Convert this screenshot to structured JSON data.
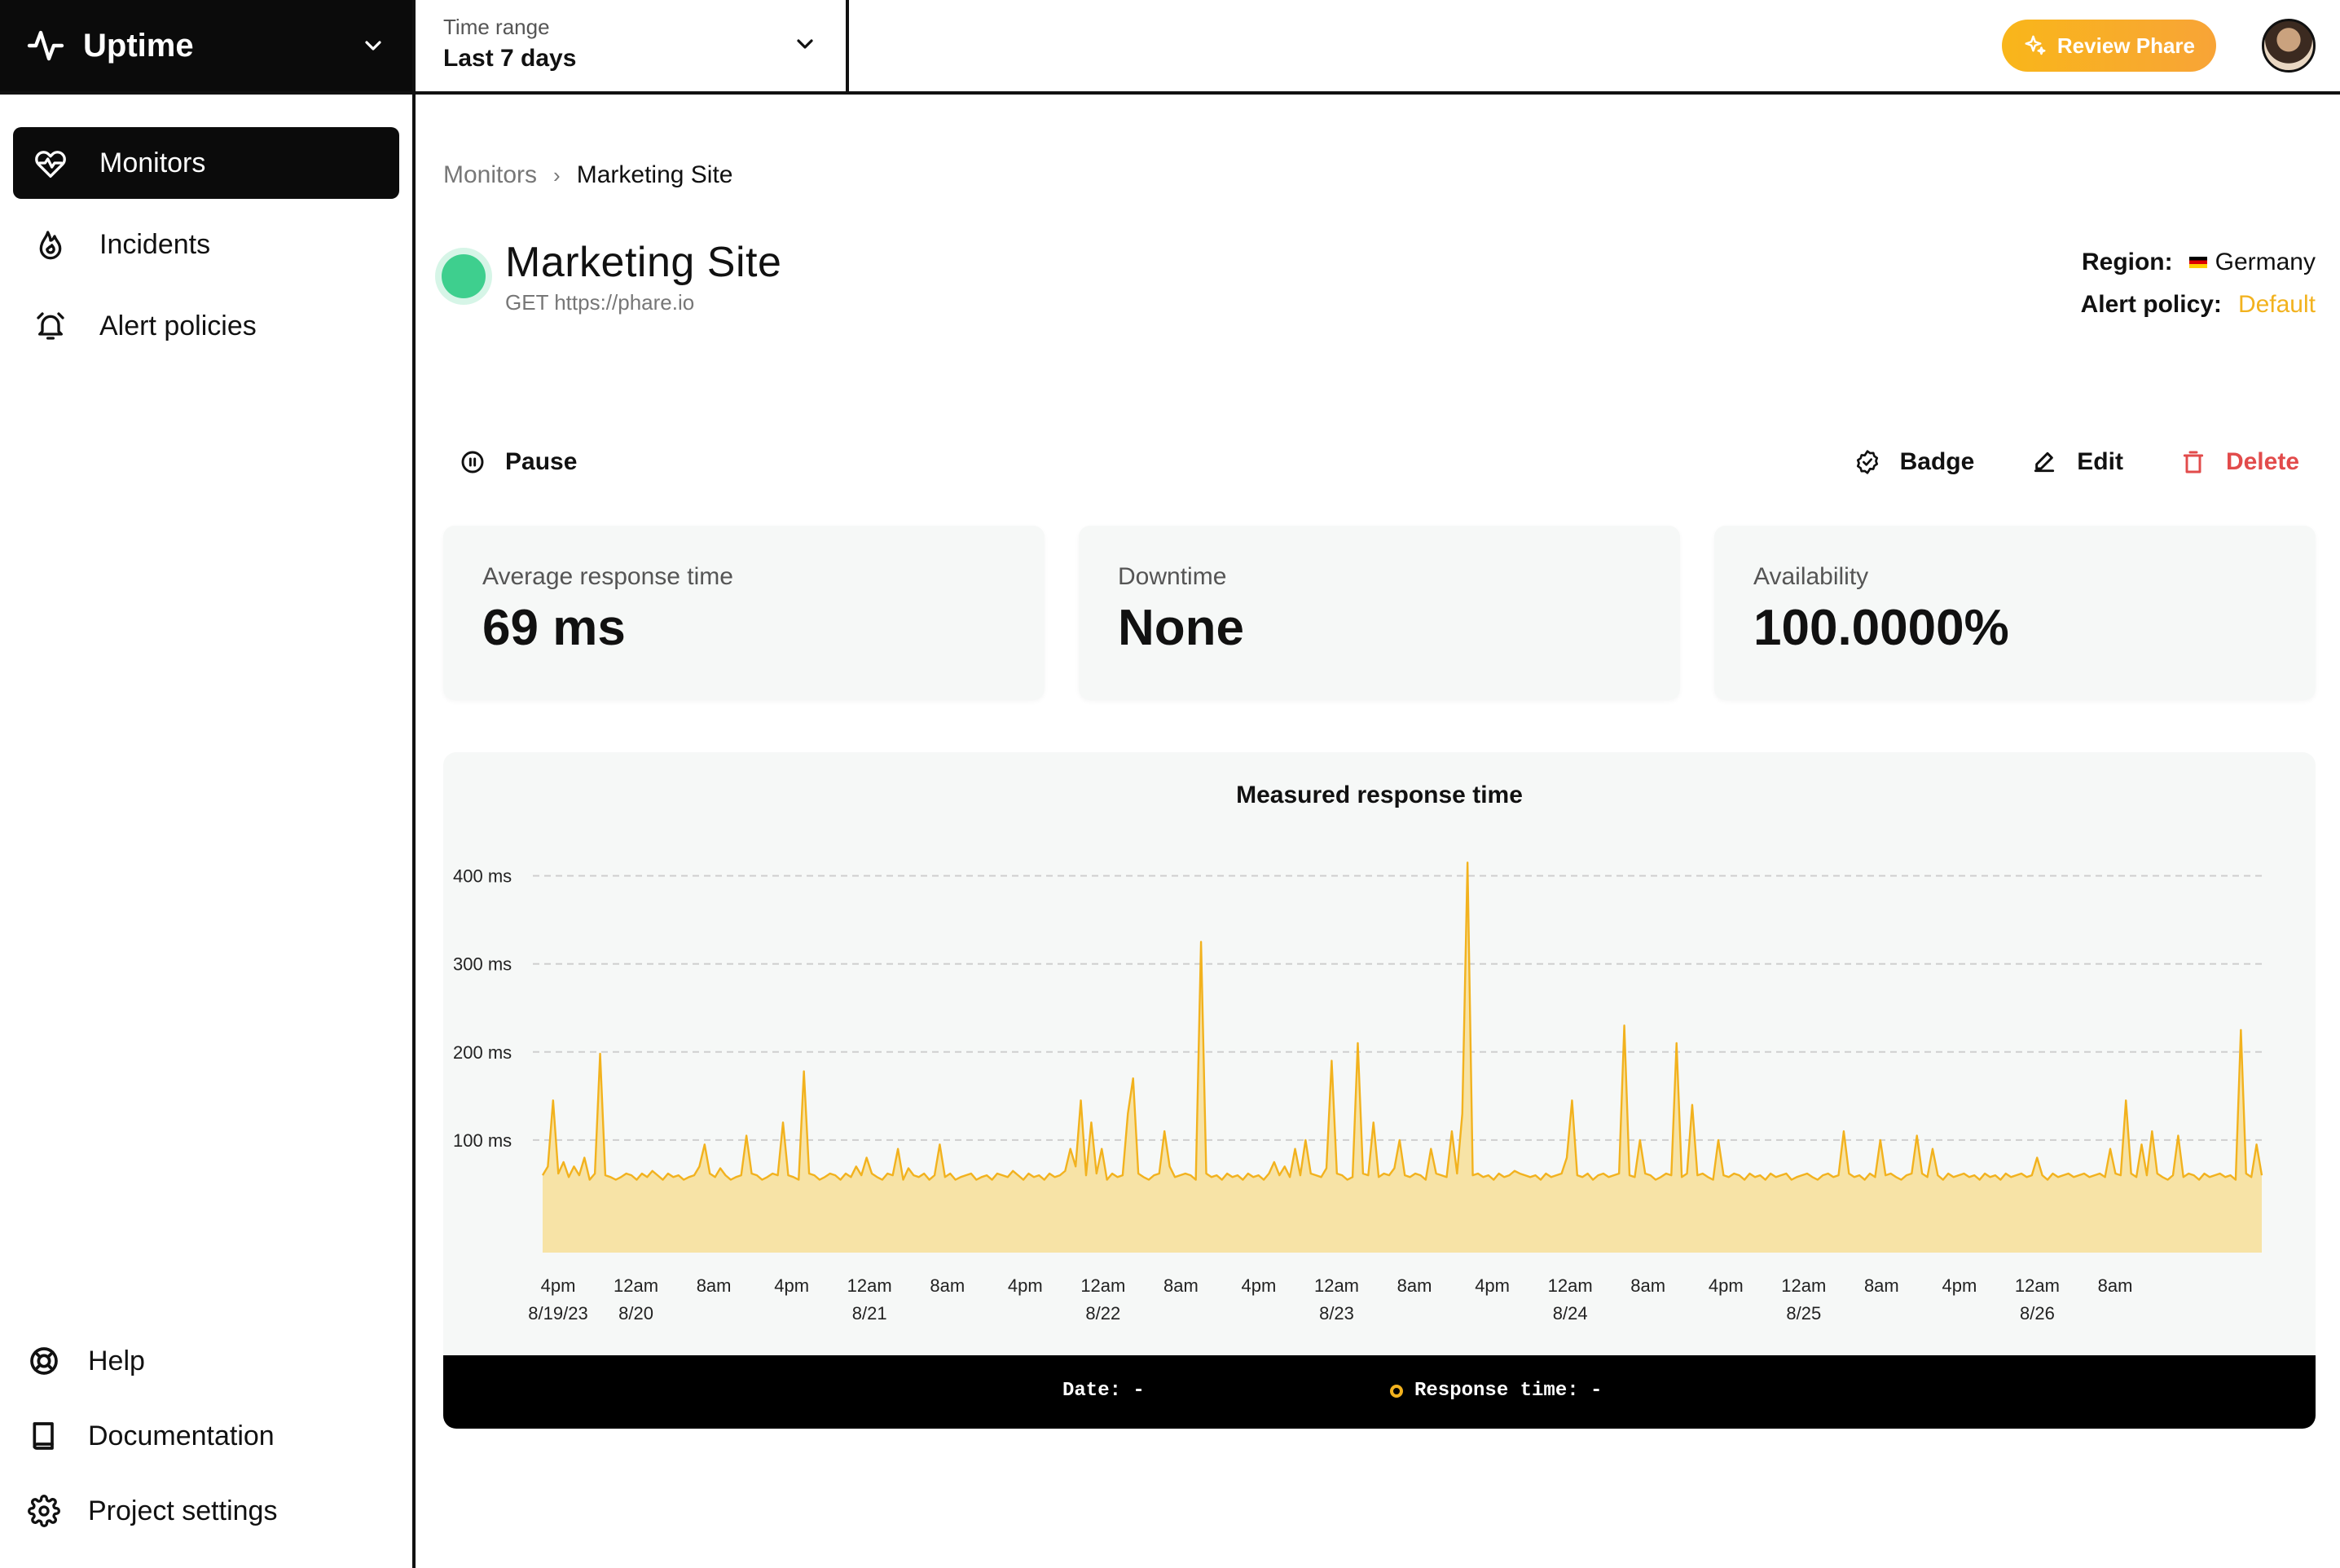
{
  "sidebar": {
    "project_name": "Uptime",
    "nav": [
      {
        "label": "Monitors",
        "icon": "heart-pulse-icon",
        "active": true
      },
      {
        "label": "Incidents",
        "icon": "flame-icon",
        "active": false
      },
      {
        "label": "Alert policies",
        "icon": "alarm-bell-icon",
        "active": false
      }
    ],
    "bottom_nav": [
      {
        "label": "Help",
        "icon": "lifebuoy-icon"
      },
      {
        "label": "Documentation",
        "icon": "book-icon"
      },
      {
        "label": "Project settings",
        "icon": "gear-icon"
      }
    ]
  },
  "topbar": {
    "time_range_label": "Time range",
    "time_range_value": "Last 7 days",
    "review_button": "Review Phare"
  },
  "breadcrumb": {
    "parent": "Monitors",
    "current": "Marketing Site"
  },
  "monitor": {
    "name": "Marketing Site",
    "request": "GET https://phare.io",
    "status": "up",
    "region_label": "Region:",
    "region_value": "Germany",
    "alert_policy_label": "Alert policy:",
    "alert_policy_value": "Default"
  },
  "actions": {
    "pause": "Pause",
    "badge": "Badge",
    "edit": "Edit",
    "delete": "Delete"
  },
  "stats": [
    {
      "label": "Average response time",
      "value": "69 ms"
    },
    {
      "label": "Downtime",
      "value": "None"
    },
    {
      "label": "Availability",
      "value": "100.0000%"
    }
  ],
  "colors": {
    "accent": "#f2b21e",
    "status_up": "#3ecf8e",
    "danger": "#e24b4b",
    "area_fill": "#f7e3a6"
  },
  "chart_data": {
    "type": "area",
    "title": "Measured response time",
    "xlabel": "",
    "ylabel": "",
    "y_ticks": [
      "100 ms",
      "200 ms",
      "300 ms",
      "400 ms"
    ],
    "ylim": [
      0,
      420
    ],
    "grid": true,
    "x_tick_labels": [
      [
        "4pm",
        "8/19/23"
      ],
      [
        "12am",
        "8/20"
      ],
      [
        "8am",
        ""
      ],
      [
        "4pm",
        ""
      ],
      [
        "12am",
        "8/21"
      ],
      [
        "8am",
        ""
      ],
      [
        "4pm",
        ""
      ],
      [
        "12am",
        "8/22"
      ],
      [
        "8am",
        ""
      ],
      [
        "4pm",
        ""
      ],
      [
        "12am",
        "8/23"
      ],
      [
        "8am",
        ""
      ],
      [
        "4pm",
        ""
      ],
      [
        "12am",
        "8/24"
      ],
      [
        "8am",
        ""
      ],
      [
        "4pm",
        ""
      ],
      [
        "12am",
        "8/25"
      ],
      [
        "8am",
        ""
      ],
      [
        "4pm",
        ""
      ],
      [
        "12am",
        "8/26"
      ],
      [
        "8am",
        ""
      ]
    ],
    "series": [
      {
        "values": [
          60,
          70,
          145,
          62,
          75,
          58,
          70,
          60,
          80,
          55,
          62,
          198,
          60,
          58,
          55,
          58,
          62,
          60,
          55,
          62,
          58,
          65,
          60,
          55,
          62,
          58,
          60,
          55,
          58,
          60,
          70,
          95,
          62,
          58,
          68,
          60,
          55,
          58,
          60,
          105,
          62,
          60,
          55,
          58,
          62,
          60,
          120,
          60,
          58,
          55,
          178,
          62,
          60,
          55,
          58,
          62,
          60,
          55,
          62,
          58,
          70,
          60,
          80,
          62,
          58,
          55,
          62,
          60,
          90,
          55,
          68,
          60,
          58,
          62,
          55,
          60,
          95,
          58,
          62,
          55,
          58,
          60,
          62,
          55,
          58,
          60,
          55,
          62,
          60,
          58,
          65,
          60,
          55,
          62,
          58,
          60,
          55,
          62,
          58,
          60,
          65,
          90,
          70,
          145,
          60,
          120,
          62,
          90,
          55,
          62,
          58,
          60,
          130,
          170,
          62,
          58,
          55,
          60,
          62,
          110,
          70,
          58,
          60,
          62,
          60,
          55,
          325,
          62,
          58,
          60,
          55,
          62,
          58,
          60,
          55,
          62,
          58,
          60,
          55,
          62,
          75,
          60,
          70,
          58,
          90,
          60,
          100,
          62,
          60,
          58,
          68,
          190,
          62,
          60,
          55,
          58,
          210,
          62,
          60,
          120,
          58,
          62,
          60,
          68,
          100,
          60,
          58,
          62,
          60,
          55,
          90,
          62,
          60,
          58,
          110,
          62,
          130,
          415,
          60,
          62,
          58,
          60,
          55,
          62,
          58,
          60,
          65,
          62,
          60,
          58,
          60,
          55,
          62,
          58,
          60,
          62,
          80,
          145,
          60,
          58,
          62,
          55,
          60,
          62,
          58,
          60,
          62,
          230,
          60,
          58,
          100,
          62,
          60,
          55,
          58,
          62,
          60,
          210,
          58,
          62,
          140,
          60,
          62,
          58,
          55,
          100,
          60,
          58,
          62,
          60,
          55,
          62,
          58,
          60,
          55,
          62,
          58,
          60,
          62,
          55,
          58,
          60,
          62,
          58,
          55,
          60,
          62,
          58,
          60,
          110,
          62,
          58,
          60,
          55,
          62,
          58,
          100,
          60,
          62,
          58,
          55,
          60,
          62,
          105,
          62,
          58,
          90,
          60,
          55,
          62,
          58,
          60,
          62,
          58,
          60,
          55,
          62,
          58,
          60,
          55,
          62,
          58,
          60,
          62,
          58,
          60,
          80,
          60,
          55,
          62,
          58,
          60,
          62,
          58,
          60,
          62,
          58,
          60,
          62,
          58,
          90,
          62,
          60,
          145,
          62,
          58,
          95,
          60,
          110,
          62,
          58,
          55,
          60,
          105,
          58,
          62,
          60,
          55,
          62,
          58,
          60,
          62,
          58,
          60,
          55,
          225,
          62,
          58,
          95,
          60
        ]
      }
    ]
  },
  "tooltip": {
    "date_label": "Date:",
    "date_value": "-",
    "response_label": "Response time:",
    "response_value": "-"
  }
}
